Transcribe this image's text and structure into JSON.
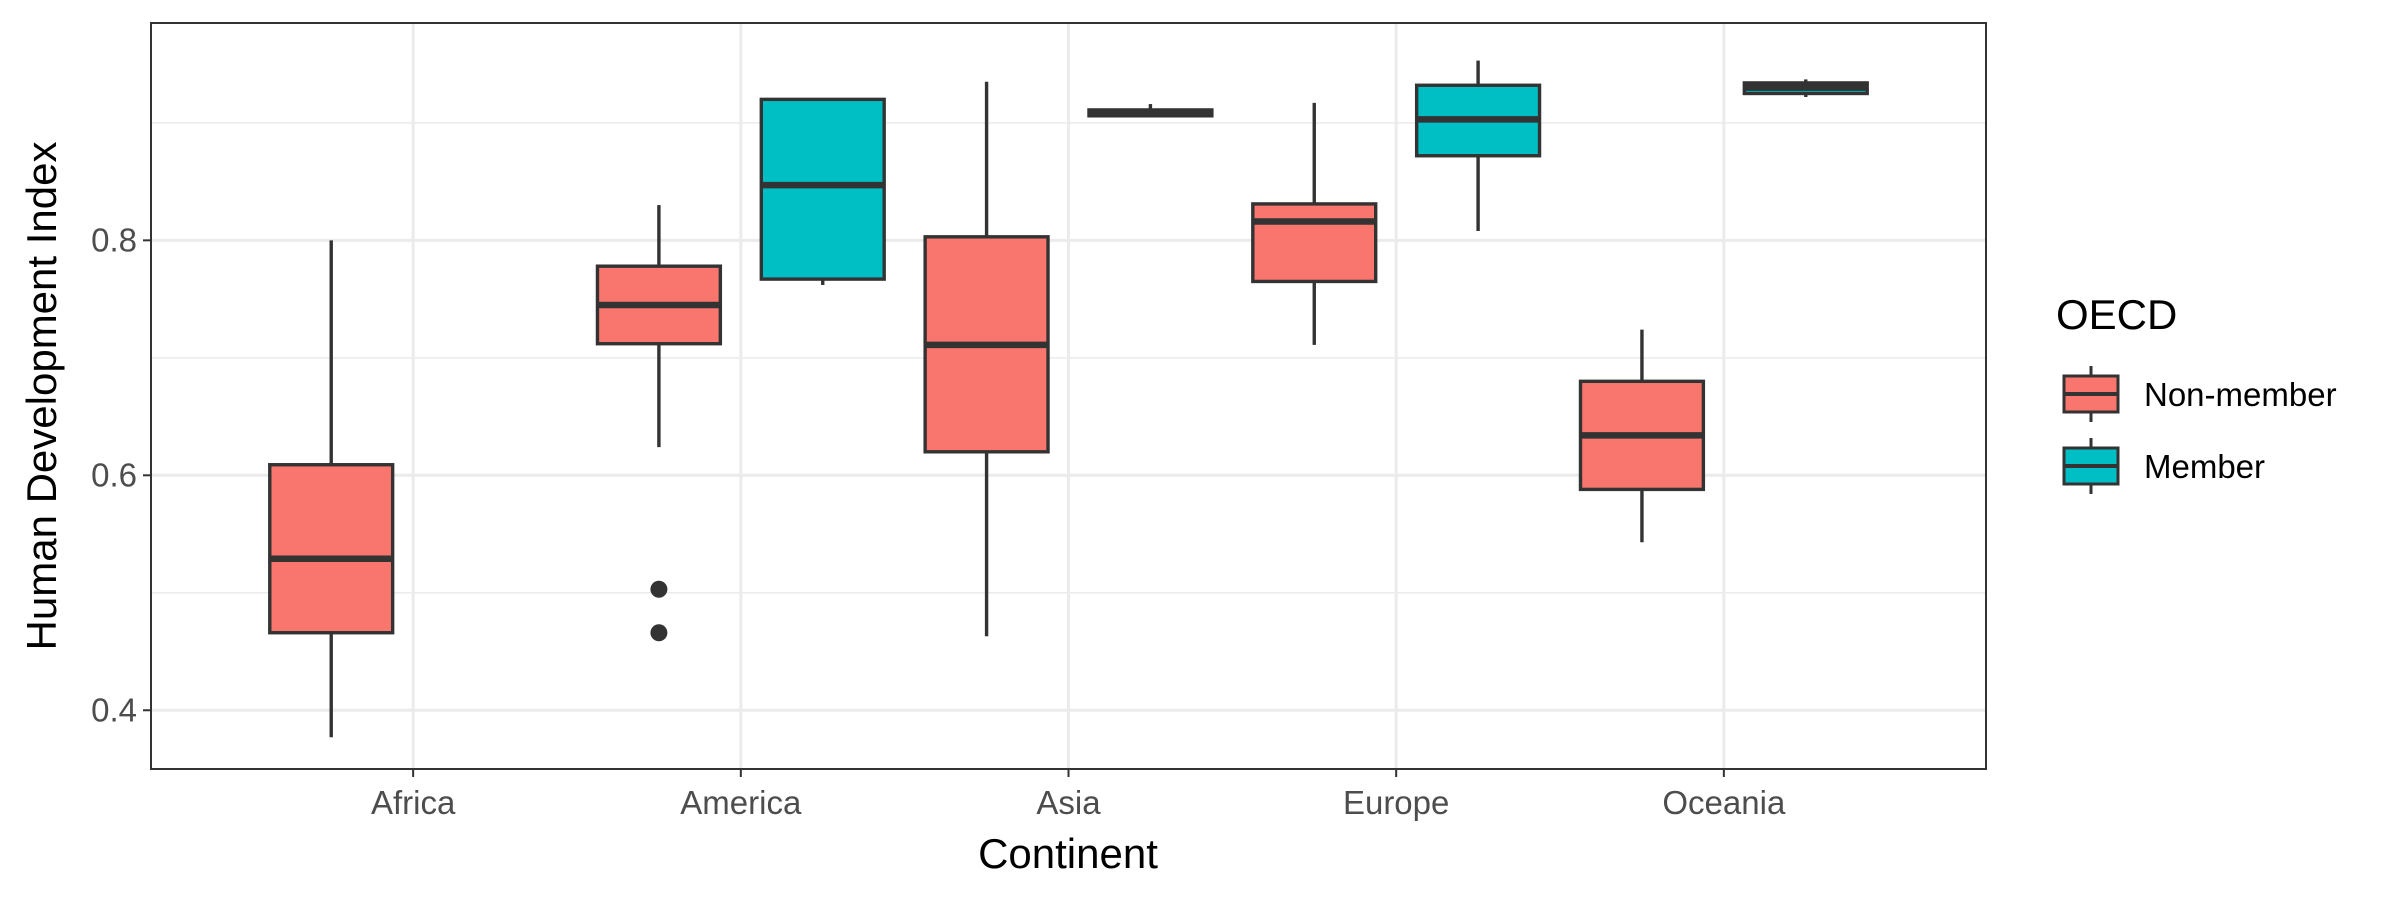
{
  "chart_data": {
    "type": "boxplot",
    "xlabel": "Continent",
    "ylabel": "Human Development Index",
    "categories": [
      "Africa",
      "America",
      "Asia",
      "Europe",
      "Oceania"
    ],
    "ylim": [
      0.35,
      0.985
    ],
    "yticks": [
      0.4,
      0.6,
      0.8
    ],
    "ytick_labels": [
      "0.4",
      "0.6",
      "0.8"
    ],
    "grid": true,
    "legend": {
      "title": "OECD",
      "position": "right",
      "entries": [
        "Non-member",
        "Member"
      ]
    },
    "series": [
      {
        "name": "Non-member",
        "color": "#F8766D",
        "boxes": [
          {
            "category": "Africa",
            "min": 0.377,
            "q1": 0.466,
            "median": 0.529,
            "q3": 0.609,
            "max": 0.8,
            "outliers": []
          },
          {
            "category": "America",
            "min": 0.624,
            "q1": 0.712,
            "median": 0.745,
            "q3": 0.778,
            "max": 0.83,
            "outliers": [
              0.503,
              0.466
            ]
          },
          {
            "category": "Asia",
            "min": 0.463,
            "q1": 0.62,
            "median": 0.711,
            "q3": 0.803,
            "max": 0.935,
            "outliers": []
          },
          {
            "category": "Europe",
            "min": 0.711,
            "q1": 0.765,
            "median": 0.816,
            "q3": 0.831,
            "max": 0.917,
            "outliers": []
          },
          {
            "category": "Oceania",
            "min": 0.543,
            "q1": 0.588,
            "median": 0.634,
            "q3": 0.68,
            "max": 0.724,
            "outliers": []
          }
        ]
      },
      {
        "name": "Member",
        "color": "#00BFC4",
        "boxes": [
          {
            "category": "America",
            "min": 0.762,
            "q1": 0.767,
            "median": 0.847,
            "q3": 0.92,
            "max": 0.921,
            "outliers": []
          },
          {
            "category": "Asia",
            "min": 0.905,
            "q1": 0.906,
            "median": 0.908,
            "q3": 0.911,
            "max": 0.916,
            "outliers": []
          },
          {
            "category": "Europe",
            "min": 0.808,
            "q1": 0.872,
            "median": 0.903,
            "q3": 0.932,
            "max": 0.953,
            "outliers": []
          },
          {
            "category": "Oceania",
            "min": 0.922,
            "q1": 0.925,
            "median": 0.93,
            "q3": 0.934,
            "max": 0.937,
            "outliers": []
          }
        ]
      }
    ]
  }
}
